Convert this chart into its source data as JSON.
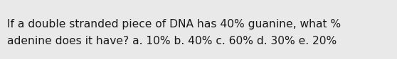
{
  "line1": "If a double stranded piece of DNA has 40% guanine, what %",
  "line2": "adenine does it have? a. 10% b. 40% c. 60% d. 30% e. 20%",
  "background_color": "#e9e9e9",
  "text_color": "#1a1a1a",
  "font_size": 11.2,
  "fig_width": 5.58,
  "fig_height": 0.84,
  "dpi": 100
}
